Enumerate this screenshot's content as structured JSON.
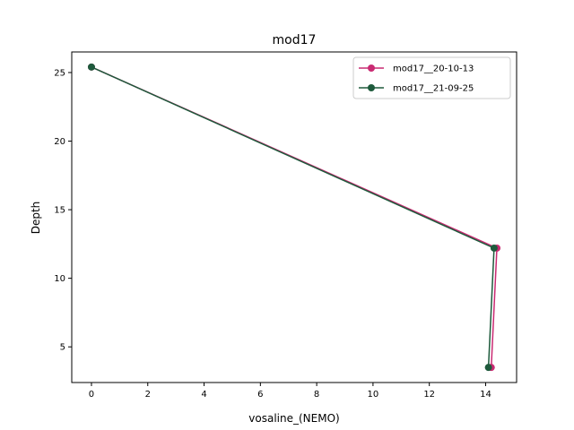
{
  "chart_data": {
    "type": "line",
    "title": "mod17",
    "xlabel": "vosaline_(NEMO)",
    "ylabel": "Depth",
    "xlim": [
      -0.7,
      15.1
    ],
    "ylim": [
      2.4,
      26.5
    ],
    "xticks": [
      0,
      2,
      4,
      6,
      8,
      10,
      12,
      14
    ],
    "yticks": [
      5,
      10,
      15,
      20,
      25
    ],
    "grid": false,
    "legend_position": "top-right",
    "series": [
      {
        "name": "mod17__20-10-13",
        "color": "#c92a72",
        "points": [
          {
            "x": 0.0,
            "y": 25.4
          },
          {
            "x": 14.4,
            "y": 12.2
          },
          {
            "x": 14.2,
            "y": 3.5
          }
        ]
      },
      {
        "name": "mod17__21-09-25",
        "color": "#1e5a3c",
        "points": [
          {
            "x": 0.0,
            "y": 25.4
          },
          {
            "x": 14.3,
            "y": 12.2
          },
          {
            "x": 14.1,
            "y": 3.5
          }
        ]
      }
    ]
  }
}
